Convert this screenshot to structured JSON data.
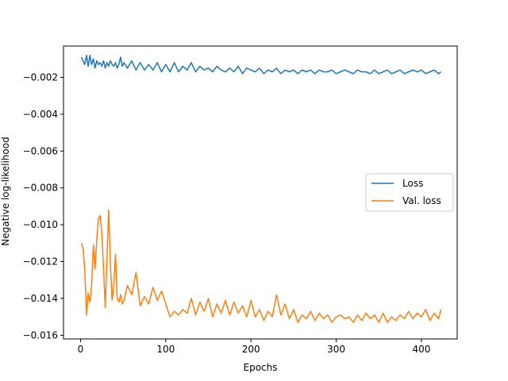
{
  "chart_data": {
    "type": "line",
    "xlabel": "Epochs",
    "ylabel": "Negative log-likelihood",
    "xlim": [
      -20,
      442
    ],
    "ylim": [
      -0.0162,
      -0.0003
    ],
    "xticks": [
      0,
      100,
      200,
      300,
      400
    ],
    "yticks": [
      -0.002,
      -0.004,
      -0.006,
      -0.008,
      -0.01,
      -0.012,
      -0.014,
      -0.016
    ],
    "ytick_labels": [
      "−0.002",
      "−0.004",
      "−0.006",
      "−0.008",
      "−0.010",
      "−0.012",
      "−0.014",
      "−0.016"
    ],
    "grid": false,
    "legend_position": "center-right",
    "series": [
      {
        "name": "Loss",
        "color": "#1f77b4",
        "x": [
          1,
          3,
          5,
          7,
          9,
          11,
          13,
          15,
          17,
          19,
          21,
          23,
          25,
          27,
          29,
          31,
          33,
          35,
          37,
          39,
          41,
          43,
          45,
          47,
          49,
          51,
          55,
          60,
          65,
          70,
          75,
          80,
          85,
          90,
          95,
          100,
          105,
          110,
          115,
          120,
          125,
          130,
          135,
          140,
          145,
          150,
          155,
          160,
          165,
          170,
          175,
          180,
          185,
          190,
          195,
          200,
          205,
          210,
          215,
          220,
          225,
          230,
          235,
          240,
          245,
          250,
          255,
          260,
          265,
          270,
          275,
          280,
          285,
          290,
          295,
          300,
          305,
          310,
          315,
          320,
          325,
          330,
          335,
          340,
          345,
          350,
          355,
          360,
          365,
          370,
          375,
          380,
          385,
          390,
          395,
          400,
          405,
          410,
          415,
          420,
          423
        ],
        "values": [
          -0.0009,
          -0.0011,
          -0.0013,
          -0.0008,
          -0.0014,
          -0.0008,
          -0.0013,
          -0.001,
          -0.0015,
          -0.0011,
          -0.0013,
          -0.0012,
          -0.0014,
          -0.0011,
          -0.0015,
          -0.0012,
          -0.0014,
          -0.0011,
          -0.0013,
          -0.0014,
          -0.0012,
          -0.0015,
          -0.0013,
          -0.0009,
          -0.0014,
          -0.0012,
          -0.0015,
          -0.0011,
          -0.0016,
          -0.0012,
          -0.0016,
          -0.0013,
          -0.0016,
          -0.0012,
          -0.0017,
          -0.0013,
          -0.0017,
          -0.0012,
          -0.0017,
          -0.0014,
          -0.0016,
          -0.0012,
          -0.0017,
          -0.0014,
          -0.0016,
          -0.0015,
          -0.0017,
          -0.0014,
          -0.0016,
          -0.0017,
          -0.0015,
          -0.0017,
          -0.0014,
          -0.0018,
          -0.0015,
          -0.0016,
          -0.0017,
          -0.0015,
          -0.0018,
          -0.0016,
          -0.0017,
          -0.0015,
          -0.0018,
          -0.0016,
          -0.0017,
          -0.0016,
          -0.0018,
          -0.0016,
          -0.0017,
          -0.0016,
          -0.0018,
          -0.0016,
          -0.0017,
          -0.0017,
          -0.0016,
          -0.0018,
          -0.0017,
          -0.0016,
          -0.0017,
          -0.0018,
          -0.0016,
          -0.0017,
          -0.0017,
          -0.0018,
          -0.0016,
          -0.0018,
          -0.0017,
          -0.0016,
          -0.0018,
          -0.0017,
          -0.0016,
          -0.0018,
          -0.0017,
          -0.0016,
          -0.0017,
          -0.0016,
          -0.0018,
          -0.0017,
          -0.0016,
          -0.0018,
          -0.0017
        ]
      },
      {
        "name": "Val. loss",
        "color": "#ff7f0e",
        "x": [
          1,
          3,
          5,
          7,
          9,
          11,
          13,
          15,
          17,
          19,
          21,
          23,
          25,
          27,
          29,
          31,
          33,
          35,
          37,
          39,
          41,
          43,
          45,
          47,
          49,
          51,
          55,
          60,
          65,
          70,
          75,
          80,
          85,
          90,
          95,
          100,
          105,
          110,
          115,
          120,
          125,
          130,
          135,
          140,
          145,
          150,
          155,
          160,
          165,
          170,
          175,
          180,
          185,
          190,
          195,
          200,
          205,
          210,
          215,
          220,
          225,
          230,
          235,
          240,
          245,
          250,
          255,
          260,
          265,
          270,
          275,
          280,
          285,
          290,
          295,
          300,
          305,
          310,
          315,
          320,
          325,
          330,
          335,
          340,
          345,
          350,
          355,
          360,
          365,
          370,
          375,
          380,
          385,
          390,
          395,
          400,
          405,
          410,
          415,
          420,
          423
        ],
        "values": [
          -0.011,
          -0.0113,
          -0.0125,
          -0.0149,
          -0.0137,
          -0.0142,
          -0.0133,
          -0.0111,
          -0.0124,
          -0.0108,
          -0.0097,
          -0.0095,
          -0.0105,
          -0.0124,
          -0.0145,
          -0.0118,
          -0.0092,
          -0.012,
          -0.0141,
          -0.0133,
          -0.0116,
          -0.014,
          -0.0142,
          -0.0138,
          -0.0143,
          -0.0141,
          -0.0133,
          -0.0138,
          -0.0126,
          -0.0144,
          -0.0139,
          -0.0143,
          -0.0134,
          -0.0141,
          -0.0136,
          -0.0143,
          -0.015,
          -0.0147,
          -0.0149,
          -0.0146,
          -0.0148,
          -0.014,
          -0.0149,
          -0.0142,
          -0.0147,
          -0.014,
          -0.015,
          -0.0143,
          -0.0148,
          -0.0141,
          -0.0149,
          -0.0142,
          -0.0148,
          -0.0144,
          -0.015,
          -0.0141,
          -0.015,
          -0.0146,
          -0.0152,
          -0.0147,
          -0.015,
          -0.0138,
          -0.0149,
          -0.0143,
          -0.0151,
          -0.0146,
          -0.0153,
          -0.0149,
          -0.0151,
          -0.0147,
          -0.0152,
          -0.0148,
          -0.0151,
          -0.0149,
          -0.0153,
          -0.015,
          -0.0149,
          -0.0151,
          -0.015,
          -0.0153,
          -0.0149,
          -0.0152,
          -0.0148,
          -0.0151,
          -0.0149,
          -0.0153,
          -0.0148,
          -0.0153,
          -0.015,
          -0.0152,
          -0.0149,
          -0.0151,
          -0.0147,
          -0.0151,
          -0.0148,
          -0.015,
          -0.0146,
          -0.0152,
          -0.0148,
          -0.0151,
          -0.0146
        ]
      }
    ]
  }
}
